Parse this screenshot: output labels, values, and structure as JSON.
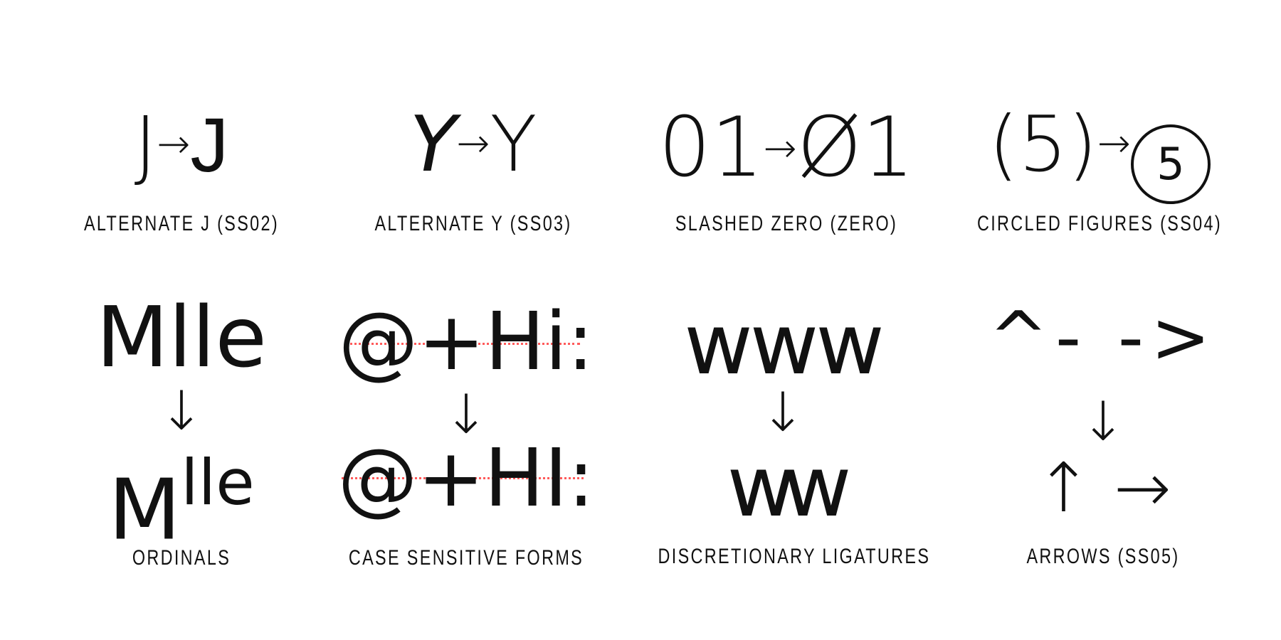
{
  "features": [
    {
      "caption": "ALTERNATE J (SS02)",
      "before": "J",
      "arrow": "→",
      "after": "J"
    },
    {
      "caption": "ALTERNATE Y (SS03)",
      "before": "Y",
      "arrow": "→",
      "after": "Y"
    },
    {
      "caption": "SLASHED ZERO (ZERO)",
      "before": "01",
      "arrow": "→",
      "after": "Ø1"
    },
    {
      "caption": "CIRCLED FIGURES (SS04)",
      "before": "(5)",
      "arrow": "→",
      "after": "5"
    },
    {
      "caption": "ORDINALS",
      "before": "Mlle",
      "arrow": "↓",
      "after_base": "M",
      "after_sup": "lle"
    },
    {
      "caption": "CASE SENSITIVE FORMS",
      "before": "@+Hi:",
      "arrow": "↓",
      "after": "@+HI:"
    },
    {
      "caption": "DISCRETIONARY LIGATURES",
      "before": "www",
      "arrow": "↓",
      "after": "ww"
    },
    {
      "caption": "ARROWS (SS05)",
      "before": "^- ->",
      "arrow": "↓",
      "after": "↑ →"
    }
  ],
  "colors": {
    "text": "#111111",
    "guide": "#ff5a5a",
    "background": "#ffffff"
  }
}
